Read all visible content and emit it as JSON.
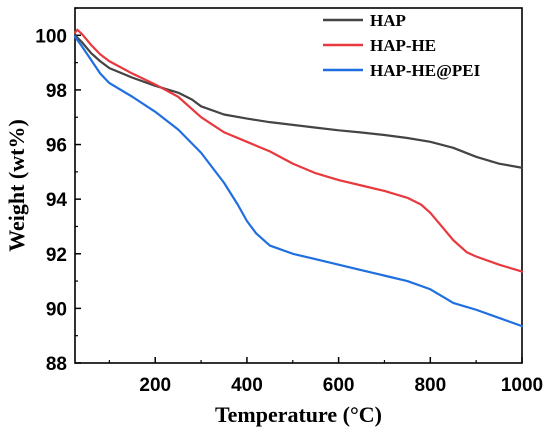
{
  "chart_data": {
    "type": "line",
    "title": "",
    "xlabel": "Temperature (°C)",
    "ylabel": "Weight (wt%)",
    "xlim": [
      25,
      1000
    ],
    "ylim": [
      88,
      101
    ],
    "x_ticks": [
      200,
      400,
      600,
      800,
      1000
    ],
    "y_ticks": [
      88,
      90,
      92,
      94,
      96,
      98,
      100
    ],
    "grid": false,
    "legend": "top-right",
    "series": [
      {
        "name": "HAP",
        "color": "#444444",
        "x": [
          25,
          40,
          60,
          80,
          100,
          150,
          200,
          250,
          280,
          300,
          350,
          400,
          450,
          500,
          550,
          600,
          650,
          700,
          750,
          800,
          850,
          900,
          950,
          1000
        ],
        "y": [
          100.0,
          99.75,
          99.35,
          99.05,
          98.8,
          98.45,
          98.15,
          97.9,
          97.65,
          97.4,
          97.1,
          96.95,
          96.82,
          96.72,
          96.62,
          96.52,
          96.44,
          96.35,
          96.24,
          96.1,
          95.88,
          95.55,
          95.3,
          95.15
        ]
      },
      {
        "name": "HAP-HE",
        "color": "#e8393f",
        "x": [
          25,
          30,
          40,
          60,
          80,
          100,
          150,
          200,
          250,
          300,
          350,
          400,
          450,
          500,
          550,
          600,
          650,
          700,
          750,
          780,
          800,
          820,
          850,
          880,
          900,
          950,
          1000
        ],
        "y": [
          100.1,
          100.2,
          100.05,
          99.65,
          99.3,
          99.05,
          98.6,
          98.2,
          97.75,
          97.0,
          96.45,
          96.1,
          95.75,
          95.3,
          94.95,
          94.7,
          94.5,
          94.3,
          94.05,
          93.8,
          93.5,
          93.1,
          92.5,
          92.05,
          91.9,
          91.6,
          91.35
        ]
      },
      {
        "name": "HAP-HE@PEI",
        "color": "#1f6fe0",
        "x": [
          25,
          40,
          60,
          80,
          100,
          150,
          200,
          250,
          300,
          350,
          380,
          400,
          420,
          450,
          500,
          550,
          600,
          650,
          700,
          750,
          800,
          830,
          850,
          870,
          900,
          950,
          1000
        ],
        "y": [
          99.95,
          99.6,
          99.1,
          98.6,
          98.25,
          97.75,
          97.2,
          96.55,
          95.7,
          94.6,
          93.8,
          93.2,
          92.75,
          92.3,
          92.0,
          91.8,
          91.6,
          91.4,
          91.2,
          91.0,
          90.7,
          90.4,
          90.2,
          90.1,
          89.95,
          89.65,
          89.35
        ]
      }
    ]
  }
}
